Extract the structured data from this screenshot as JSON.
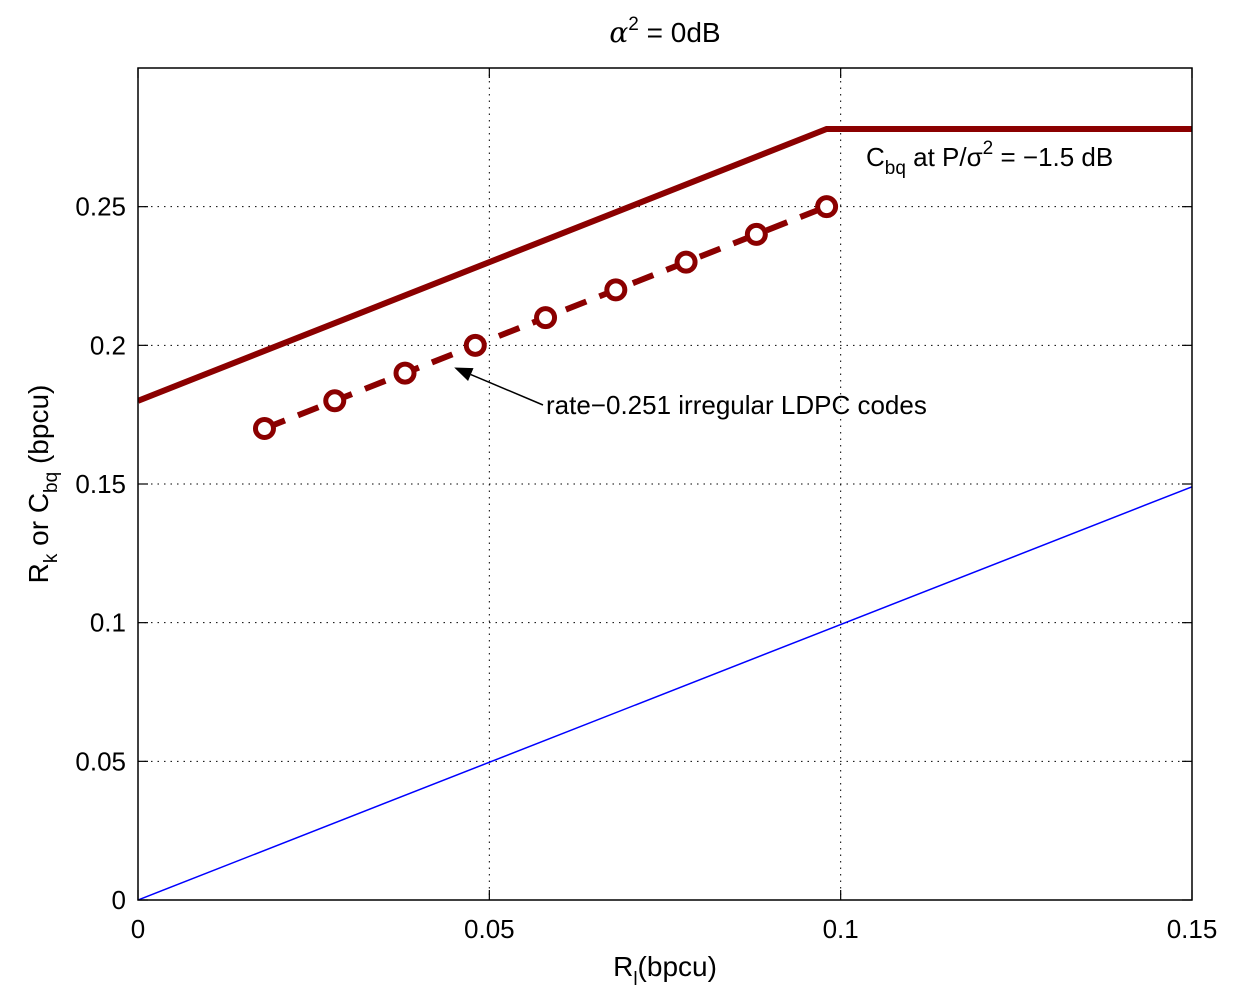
{
  "chart_data": {
    "type": "line",
    "title": {
      "base": "α",
      "sup": "2",
      "rest": " = 0dB"
    },
    "xlabel": {
      "base": "R",
      "sub": "l",
      "rest": "(bpcu)"
    },
    "ylabel": {
      "p1": "R",
      "s1": "k",
      "p2": " or C",
      "s2": "bq",
      "p3": " (bpcu)"
    },
    "xlim": [
      0,
      0.15
    ],
    "ylim": [
      0,
      0.3
    ],
    "xticks": [
      0,
      0.05,
      0.1,
      0.15
    ],
    "xtick_labels": [
      "0",
      "0.05",
      "0.1",
      "0.15"
    ],
    "yticks": [
      0,
      0.05,
      0.1,
      0.15,
      0.2,
      0.25
    ],
    "ytick_labels": [
      "0",
      "0.05",
      "0.1",
      "0.15",
      "0.2",
      "0.25"
    ],
    "grid": true,
    "series": [
      {
        "style": "solid-thick",
        "color": "#8b0000",
        "x": [
          0,
          0.098,
          0.15
        ],
        "y": [
          0.18,
          0.278,
          0.278
        ]
      },
      {
        "style": "dashed-circles",
        "color": "#8b0000",
        "x": [
          0.018,
          0.028,
          0.038,
          0.048,
          0.058,
          0.068,
          0.078,
          0.088,
          0.098
        ],
        "y": [
          0.17,
          0.18,
          0.19,
          0.2,
          0.21,
          0.22,
          0.23,
          0.24,
          0.25
        ]
      },
      {
        "style": "solid-thin",
        "color": "#0000ff",
        "x": [
          0,
          0.15
        ],
        "y": [
          0,
          0.149
        ]
      }
    ],
    "annotations": [
      {
        "label": {
          "p1": "C",
          "s1": "bq",
          "p2": " at P/σ",
          "sup": "2",
          "p3": " = −1.5 dB"
        }
      },
      {
        "text": "rate−0.251 irregular LDPC codes",
        "arrow_to": [
          0.045,
          0.192
        ]
      }
    ]
  }
}
